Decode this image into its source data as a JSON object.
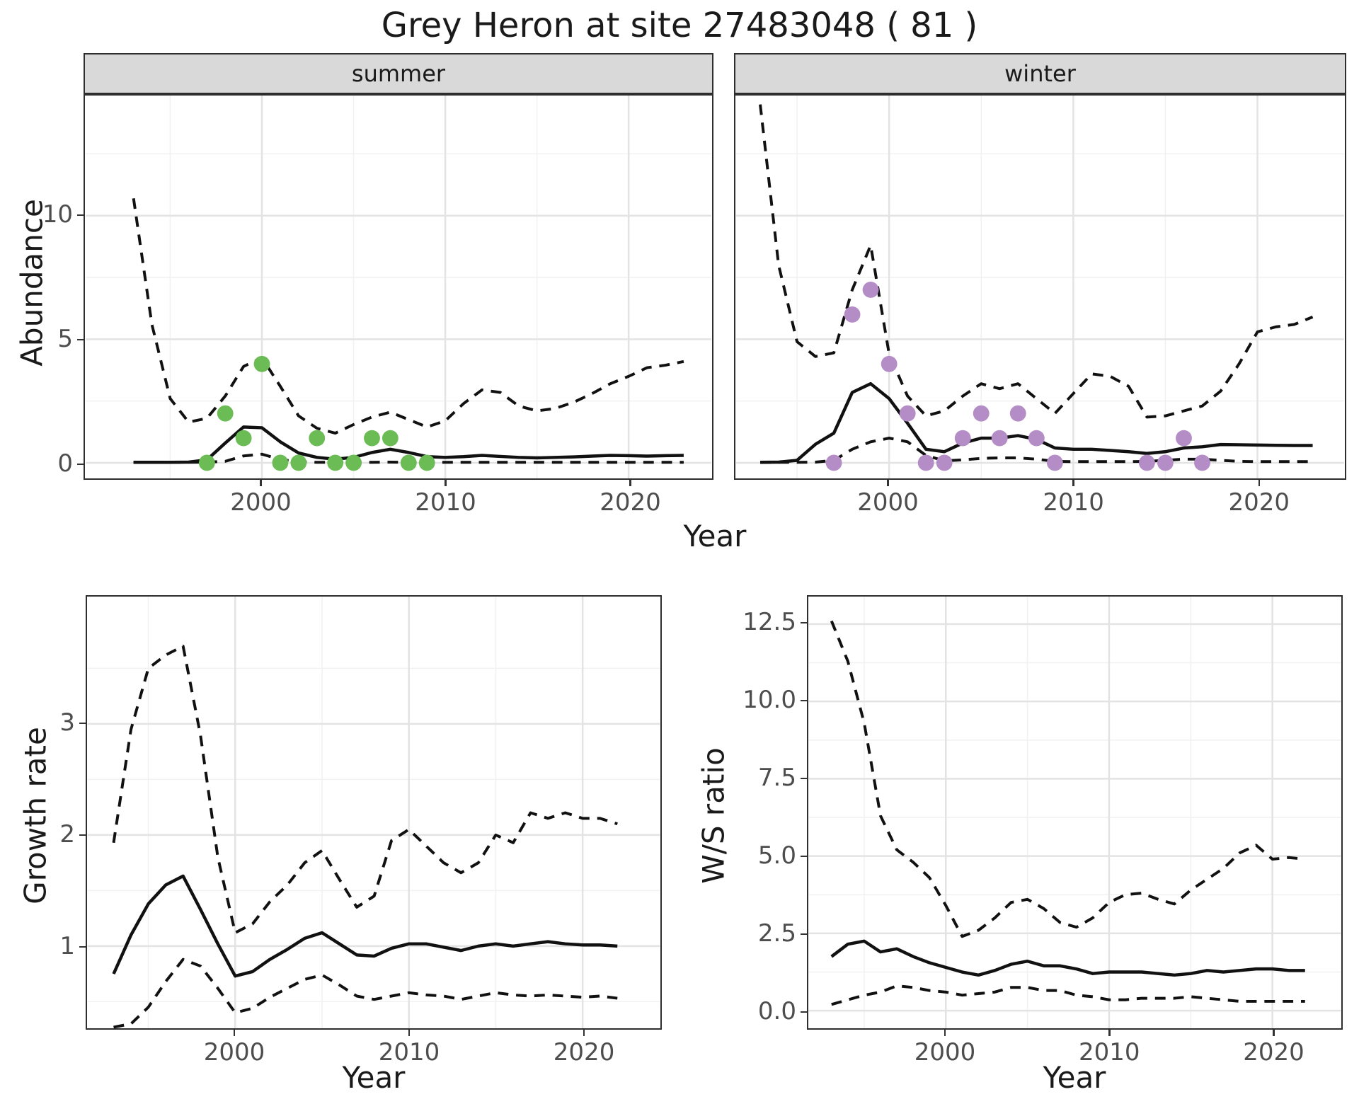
{
  "title": "Grey Heron at site 27483048 ( 81 )",
  "colors": {
    "summer_point": "#6BBC55",
    "winter_point": "#B48CC6",
    "line": "#111111",
    "strip_background": "#D9D9D9",
    "panel_border": "#2E2E2E",
    "grid_major": "#E3E3E3",
    "grid_minor": "#F1F1F1",
    "tick_text": "#4D4D4D",
    "axis_text": "#1A1A1A"
  },
  "chart_data": [
    {
      "id": "abundance",
      "type": "line",
      "ylabel": "Abundance",
      "xlabel": "Year",
      "ylim": [
        -0.6,
        14.9
      ],
      "xlim": [
        1990.5,
        2024.5
      ],
      "grid": true,
      "legend_position": "none",
      "line_styles": {
        "mean": "solid",
        "upper_ci": "dashed",
        "lower_ci": "dashed"
      },
      "yticks": [
        {
          "v": 0,
          "label": "0"
        },
        {
          "v": 5,
          "label": "5"
        },
        {
          "v": 10,
          "label": "10"
        }
      ],
      "yminor": [
        2.5,
        7.5,
        12.5
      ],
      "xticks": [
        {
          "v": 2000,
          "label": "2000"
        },
        {
          "v": 2010,
          "label": "2010"
        },
        {
          "v": 2020,
          "label": "2020"
        }
      ],
      "xminor": [
        1995,
        2005,
        2015
      ],
      "years": [
        1993,
        1994,
        1995,
        1996,
        1997,
        1998,
        1999,
        2000,
        2001,
        2002,
        2003,
        2004,
        2005,
        2006,
        2007,
        2008,
        2009,
        2010,
        2011,
        2012,
        2013,
        2014,
        2015,
        2016,
        2017,
        2018,
        2019,
        2020,
        2021,
        2022,
        2023
      ],
      "facets": [
        {
          "label": "summer",
          "mean": [
            0.02,
            0.02,
            0.02,
            0.03,
            0.12,
            0.8,
            1.45,
            1.42,
            0.85,
            0.4,
            0.22,
            0.15,
            0.22,
            0.42,
            0.55,
            0.42,
            0.25,
            0.22,
            0.25,
            0.3,
            0.26,
            0.22,
            0.2,
            0.22,
            0.24,
            0.27,
            0.3,
            0.29,
            0.27,
            0.29,
            0.3
          ],
          "upper_ci": [
            10.7,
            5.6,
            2.6,
            1.65,
            1.8,
            2.7,
            3.9,
            4.25,
            3.1,
            1.9,
            1.4,
            1.2,
            1.55,
            1.85,
            2.05,
            1.75,
            1.45,
            1.7,
            2.4,
            2.95,
            2.85,
            2.3,
            2.1,
            2.2,
            2.45,
            2.8,
            3.2,
            3.5,
            3.85,
            3.95,
            4.1
          ],
          "lower_ci": [
            0.02,
            0.02,
            0.02,
            0.02,
            0.03,
            0.06,
            0.28,
            0.35,
            0.14,
            0.04,
            0.02,
            0.02,
            0.02,
            0.02,
            0.03,
            0.02,
            0.02,
            0.02,
            0.02,
            0.02,
            0.02,
            0.02,
            0.02,
            0.02,
            0.02,
            0.02,
            0.02,
            0.02,
            0.02,
            0.02,
            0.02
          ],
          "observations": {
            "years": [
              1997,
              1998,
              1999,
              2000,
              2001,
              2002,
              2003,
              2004,
              2005,
              2006,
              2007,
              2008,
              2009
            ],
            "values": [
              0,
              2,
              1,
              4,
              0,
              0,
              1,
              0,
              0,
              1,
              1,
              0,
              0
            ]
          }
        },
        {
          "label": "winter",
          "mean": [
            0.02,
            0.03,
            0.1,
            0.75,
            1.2,
            2.85,
            3.2,
            2.6,
            1.6,
            0.55,
            0.45,
            0.8,
            1.0,
            1.0,
            1.1,
            0.95,
            0.6,
            0.55,
            0.55,
            0.5,
            0.45,
            0.38,
            0.45,
            0.6,
            0.65,
            0.74,
            0.73,
            0.72,
            0.71,
            0.7,
            0.7
          ],
          "upper_ci": [
            14.5,
            8.0,
            4.9,
            4.3,
            4.45,
            7.0,
            8.8,
            4.4,
            2.7,
            1.9,
            2.1,
            2.7,
            3.2,
            3.0,
            3.2,
            2.6,
            2.0,
            2.8,
            3.6,
            3.5,
            3.1,
            1.85,
            1.9,
            2.1,
            2.3,
            2.9,
            4.0,
            5.3,
            5.5,
            5.6,
            5.9
          ],
          "lower_ci": [
            0.02,
            0.02,
            0.02,
            0.03,
            0.1,
            0.55,
            0.85,
            1.0,
            0.85,
            0.3,
            0.08,
            0.12,
            0.18,
            0.2,
            0.2,
            0.15,
            0.06,
            0.05,
            0.05,
            0.05,
            0.05,
            0.06,
            0.1,
            0.15,
            0.15,
            0.1,
            0.06,
            0.05,
            0.05,
            0.05,
            0.05
          ],
          "observations": {
            "years": [
              1997,
              1998,
              1999,
              2000,
              2001,
              2002,
              2003,
              2004,
              2005,
              2006,
              2007,
              2008,
              2009,
              2014,
              2015,
              2016,
              2017
            ],
            "values": [
              0,
              6,
              7,
              4,
              2,
              0,
              0,
              1,
              2,
              1,
              2,
              1,
              0,
              0,
              0,
              1,
              0
            ]
          }
        }
      ]
    },
    {
      "id": "growth_rate",
      "type": "line",
      "ylabel": "Growth rate",
      "xlabel": "Year",
      "ylim": [
        0.25,
        4.15
      ],
      "xlim": [
        1991.5,
        2024.5
      ],
      "grid": true,
      "legend_position": "none",
      "line_styles": {
        "mean": "solid",
        "upper_ci": "dashed",
        "lower_ci": "dashed"
      },
      "yticks": [
        {
          "v": 1,
          "label": "1"
        },
        {
          "v": 2,
          "label": "2"
        },
        {
          "v": 3,
          "label": "3"
        }
      ],
      "yminor": [
        0.5,
        1.5,
        2.5,
        3.5
      ],
      "xticks": [
        {
          "v": 2000,
          "label": "2000"
        },
        {
          "v": 2010,
          "label": "2010"
        },
        {
          "v": 2020,
          "label": "2020"
        }
      ],
      "xminor": [
        1995,
        2005,
        2015
      ],
      "years": [
        1993,
        1994,
        1995,
        1996,
        1997,
        1998,
        1999,
        2000,
        2001,
        2002,
        2003,
        2004,
        2005,
        2006,
        2007,
        2008,
        2009,
        2010,
        2011,
        2012,
        2013,
        2014,
        2015,
        2016,
        2017,
        2018,
        2019,
        2020,
        2021,
        2022
      ],
      "mean": [
        0.75,
        1.1,
        1.38,
        1.55,
        1.63,
        1.33,
        1.02,
        0.73,
        0.77,
        0.88,
        0.97,
        1.07,
        1.12,
        1.02,
        0.92,
        0.91,
        0.98,
        1.02,
        1.02,
        0.99,
        0.96,
        1.0,
        1.02,
        1.0,
        1.02,
        1.04,
        1.02,
        1.01,
        1.01,
        1.0
      ],
      "upper_ci": [
        1.93,
        2.95,
        3.5,
        3.62,
        3.7,
        2.9,
        1.8,
        1.12,
        1.2,
        1.4,
        1.55,
        1.75,
        1.86,
        1.6,
        1.35,
        1.45,
        1.95,
        2.05,
        1.9,
        1.75,
        1.66,
        1.75,
        2.0,
        1.93,
        2.2,
        2.15,
        2.2,
        2.15,
        2.15,
        2.1
      ],
      "lower_ci": [
        0.27,
        0.3,
        0.45,
        0.68,
        0.88,
        0.82,
        0.62,
        0.4,
        0.44,
        0.54,
        0.62,
        0.7,
        0.74,
        0.65,
        0.55,
        0.52,
        0.55,
        0.58,
        0.56,
        0.55,
        0.52,
        0.55,
        0.58,
        0.56,
        0.55,
        0.56,
        0.55,
        0.54,
        0.55,
        0.53
      ]
    },
    {
      "id": "ws_ratio",
      "type": "line",
      "ylabel": "W/S ratio",
      "xlabel": "Year",
      "ylim": [
        -0.55,
        13.4
      ],
      "xlim": [
        1991.5,
        2024.2
      ],
      "grid": true,
      "legend_position": "none",
      "line_styles": {
        "mean": "solid",
        "upper_ci": "dashed",
        "lower_ci": "dashed"
      },
      "yticks": [
        {
          "v": 0,
          "label": "0.0"
        },
        {
          "v": 2.5,
          "label": "2.5"
        },
        {
          "v": 5,
          "label": "5.0"
        },
        {
          "v": 7.5,
          "label": "7.5"
        },
        {
          "v": 10,
          "label": "10.0"
        },
        {
          "v": 12.5,
          "label": "12.5"
        }
      ],
      "yminor": [
        1.25,
        3.75,
        6.25,
        8.75,
        11.25
      ],
      "xticks": [
        {
          "v": 2000,
          "label": "2000"
        },
        {
          "v": 2010,
          "label": "2010"
        },
        {
          "v": 2020,
          "label": "2020"
        }
      ],
      "xminor": [
        1995,
        2005,
        2015
      ],
      "years": [
        1993,
        1994,
        1995,
        1996,
        1997,
        1998,
        1999,
        2000,
        2001,
        2002,
        2003,
        2004,
        2005,
        2006,
        2007,
        2008,
        2009,
        2010,
        2011,
        2012,
        2013,
        2014,
        2015,
        2016,
        2017,
        2018,
        2019,
        2020,
        2021,
        2022
      ],
      "mean": [
        1.75,
        2.15,
        2.25,
        1.9,
        2.0,
        1.75,
        1.55,
        1.4,
        1.25,
        1.15,
        1.3,
        1.5,
        1.6,
        1.45,
        1.45,
        1.35,
        1.2,
        1.25,
        1.25,
        1.25,
        1.2,
        1.15,
        1.2,
        1.3,
        1.25,
        1.3,
        1.35,
        1.35,
        1.3,
        1.3
      ],
      "upper_ci": [
        12.6,
        11.3,
        9.3,
        6.3,
        5.2,
        4.8,
        4.3,
        3.4,
        2.4,
        2.6,
        3.0,
        3.5,
        3.6,
        3.3,
        2.85,
        2.7,
        3.0,
        3.5,
        3.75,
        3.8,
        3.6,
        3.45,
        3.9,
        4.25,
        4.6,
        5.1,
        5.35,
        4.9,
        4.95,
        4.9
      ],
      "lower_ci": [
        0.2,
        0.35,
        0.5,
        0.6,
        0.8,
        0.75,
        0.65,
        0.6,
        0.5,
        0.55,
        0.6,
        0.75,
        0.75,
        0.65,
        0.65,
        0.5,
        0.45,
        0.35,
        0.35,
        0.4,
        0.4,
        0.4,
        0.45,
        0.4,
        0.35,
        0.3,
        0.3,
        0.3,
        0.3,
        0.3
      ]
    }
  ]
}
